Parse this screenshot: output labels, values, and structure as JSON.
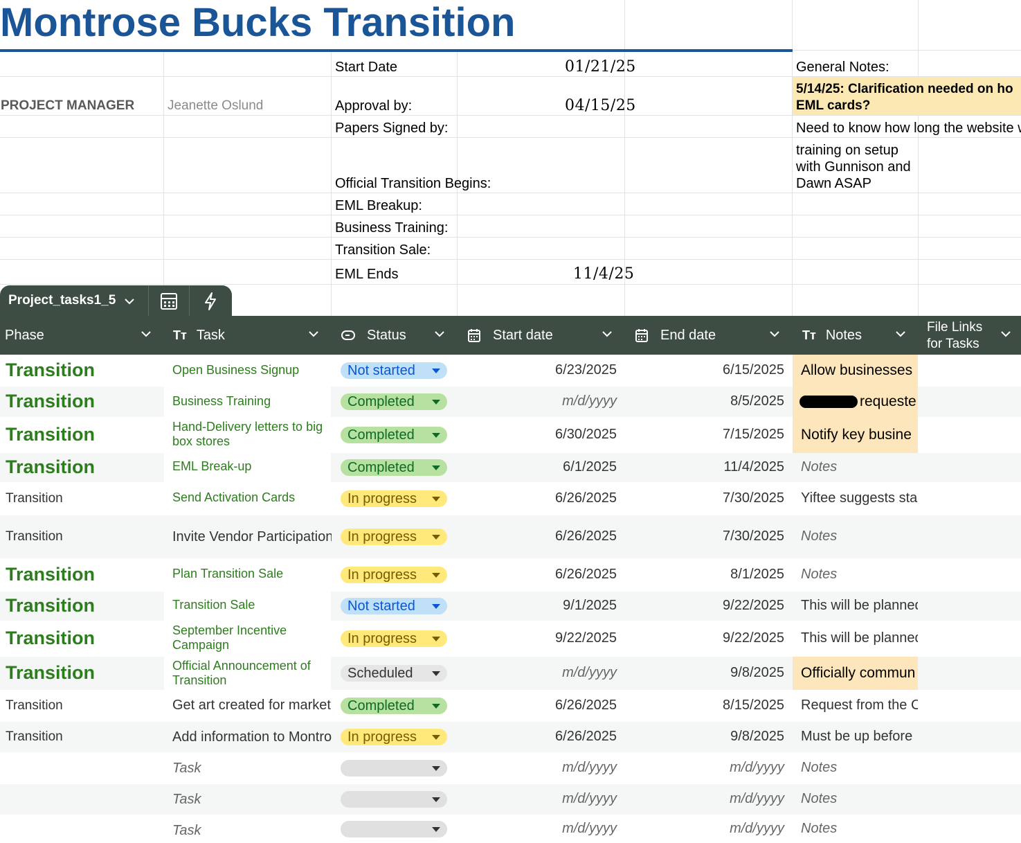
{
  "title": "Montrose Bucks Transition",
  "project_manager": {
    "label": "PROJECT MANAGER",
    "name": "Jeanette Oslund"
  },
  "info": {
    "start_date_label": "Start Date",
    "start_date": "01/21/25",
    "approval_label": "Approval by:",
    "approval_date": "04/15/25",
    "papers_label": "Papers Signed by:",
    "official_label": "Official Transition Begins:",
    "eml_breakup_label": "EML Breakup:",
    "business_training_label": "Business Training:",
    "transition_sale_label": "Transition Sale:",
    "eml_ends_label": "EML Ends",
    "eml_ends_date": "11/4/25"
  },
  "general_notes": {
    "label": "General Notes:",
    "highlight_line1": "5/14/25: Clarification needed on ho",
    "highlight_line2": "EML cards?",
    "line2": "Need to know how long the website w",
    "line3a": "training on setup",
    "line3b": "with Gunnison and",
    "line3c": "Dawn ASAP"
  },
  "table": {
    "tab_name": "Project_tasks1_5",
    "headers": {
      "phase": "Phase",
      "task": "Task",
      "status": "Status",
      "start_date": "Start date",
      "end_date": "End date",
      "notes": "Notes",
      "file_links_1": "File Links",
      "file_links_2": "for Tasks"
    },
    "rows": [
      {
        "phase": "Transition",
        "task": "Open Business Signup",
        "status": "Not started",
        "start": "6/23/2025",
        "end": "6/15/2025",
        "notes": "Allow businesses"
      },
      {
        "phase": "Transition",
        "task": "Business Training",
        "status": "Completed",
        "start": "m/d/yyyy",
        "end": "8/5/2025",
        "notes": "requeste"
      },
      {
        "phase": "Transition",
        "task": "Hand-Delivery letters to big box stores",
        "status": "Completed",
        "start": "6/30/2025",
        "end": "7/15/2025",
        "notes": "Notify key busine"
      },
      {
        "phase": "Transition",
        "task": "EML Break-up",
        "status": "Completed",
        "start": "6/1/2025",
        "end": "11/4/2025",
        "notes": "Notes"
      },
      {
        "phase": "Transition",
        "task": "Send Activation Cards",
        "status": "In progress",
        "start": "6/26/2025",
        "end": "7/30/2025",
        "notes": "Yiftee suggests sta"
      },
      {
        "phase": "Transition",
        "task": "Invite Vendor Participation",
        "status": "In progress",
        "start": "6/26/2025",
        "end": "7/30/2025",
        "notes": "Notes"
      },
      {
        "phase": "Transition",
        "task": "Plan Transition Sale",
        "status": "In progress",
        "start": "6/26/2025",
        "end": "8/1/2025",
        "notes": "Notes"
      },
      {
        "phase": "Transition",
        "task": "Transition Sale",
        "status": "Not started",
        "start": "9/1/2025",
        "end": "9/22/2025",
        "notes": "This will be planned"
      },
      {
        "phase": "Transition",
        "task": "September Incentive Campaign",
        "status": "In progress",
        "start": "9/22/2025",
        "end": "9/22/2025",
        "notes": "This will be planned"
      },
      {
        "phase": "Transition",
        "task": "Official Announcement of Transition",
        "status": "Scheduled",
        "start": "m/d/yyyy",
        "end": "9/8/2025",
        "notes": "Officially commun"
      },
      {
        "phase": "Transition",
        "task": "Get art created for marketing",
        "status": "Completed",
        "start": "6/26/2025",
        "end": "8/15/2025",
        "notes": "Request from the C"
      },
      {
        "phase": "Transition",
        "task": "Add information to Montrose",
        "status": "In progress",
        "start": "6/26/2025",
        "end": "9/8/2025",
        "notes": "Must be up before"
      },
      {
        "phase": "",
        "task": "Task",
        "status": "",
        "start": "m/d/yyyy",
        "end": "m/d/yyyy",
        "notes": "Notes"
      },
      {
        "phase": "",
        "task": "Task",
        "status": "",
        "start": "m/d/yyyy",
        "end": "m/d/yyyy",
        "notes": "Notes"
      },
      {
        "phase": "",
        "task": "Task",
        "status": "",
        "start": "m/d/yyyy",
        "end": "m/d/yyyy",
        "notes": "Notes"
      }
    ]
  },
  "colors": {
    "title_blue": "#1a5597",
    "header_bg": "#3e4d43",
    "phase_green": "#2d7d1e",
    "not_started_bg": "#bfe0f6",
    "completed_bg": "#b7e1a1",
    "in_progress_bg": "#ffe97a",
    "highlight_bg": "#fde6bb"
  },
  "icons": [
    "chevron-down-icon",
    "calculator-icon",
    "lightning-icon",
    "text-type-icon",
    "status-icon",
    "calendar-icon"
  ]
}
